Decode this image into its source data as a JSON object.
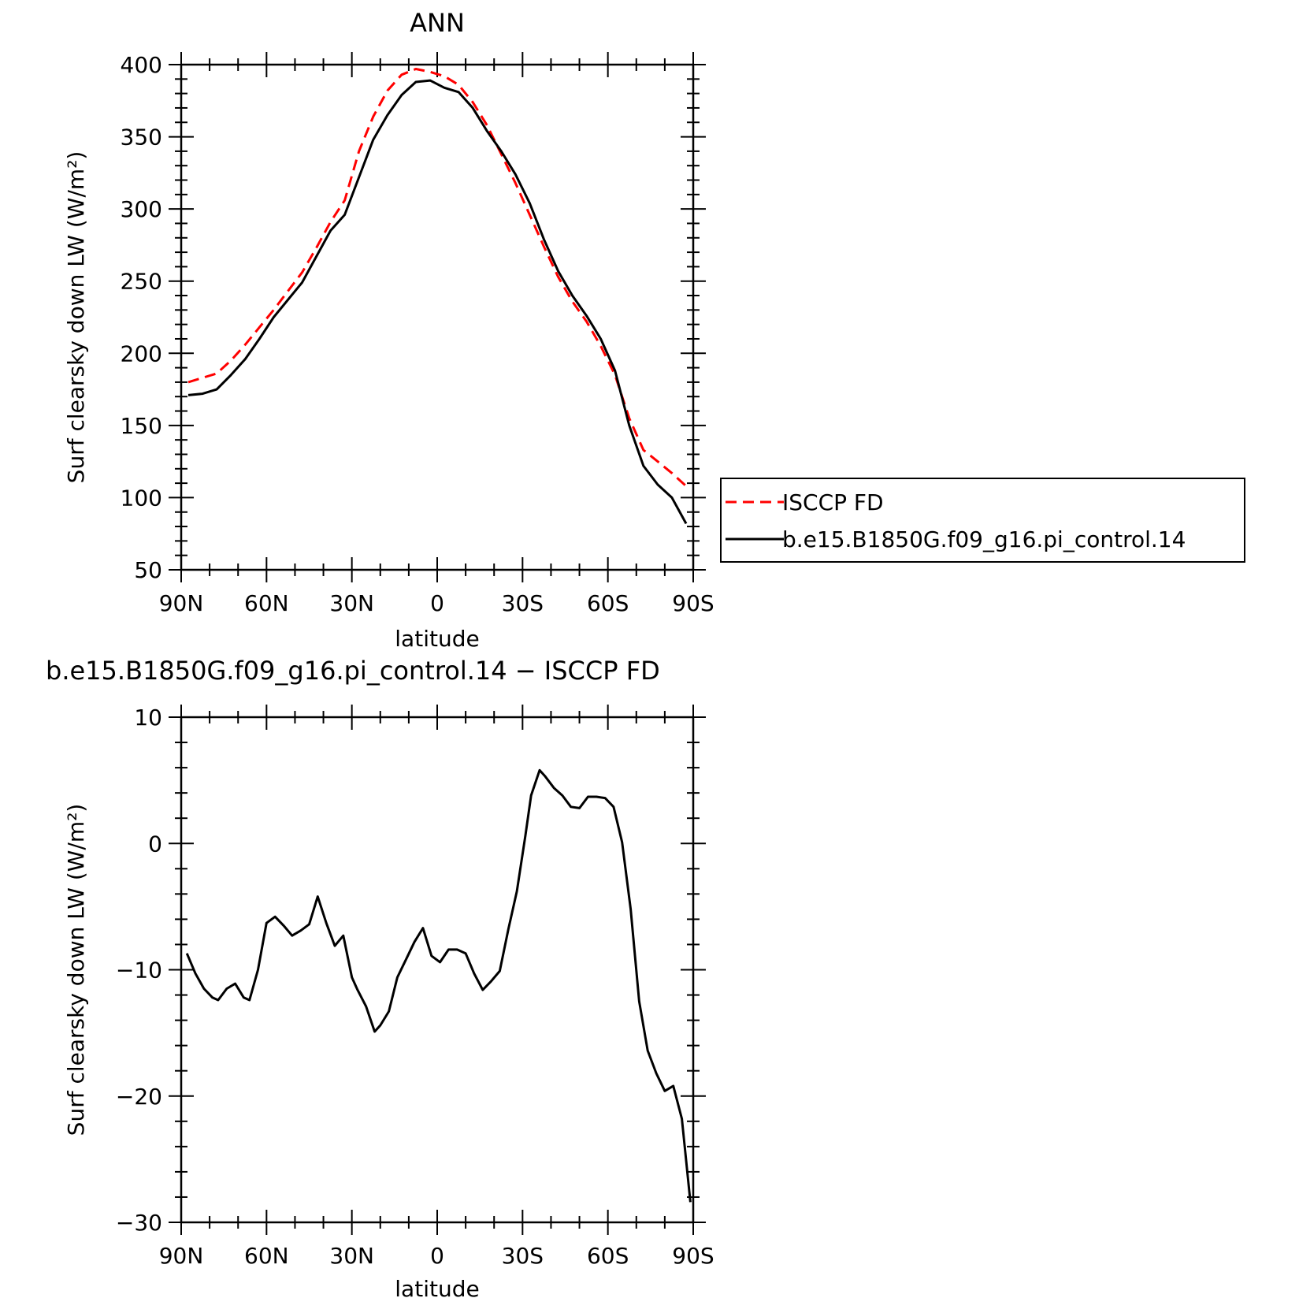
{
  "chart_data": [
    {
      "type": "line",
      "title": "ANN",
      "xlabel": "latitude",
      "ylabel": "Surf clearsky down LW (W/m²)",
      "ylim": [
        50,
        400
      ],
      "xlim": [
        90,
        -90
      ],
      "x_ticks": [
        {
          "value": 90,
          "label": "90N"
        },
        {
          "value": 60,
          "label": "60N"
        },
        {
          "value": 30,
          "label": "30N"
        },
        {
          "value": 0,
          "label": "0"
        },
        {
          "value": -30,
          "label": "30S"
        },
        {
          "value": -60,
          "label": "60S"
        },
        {
          "value": -90,
          "label": "90S"
        }
      ],
      "y_ticks": [
        {
          "value": 400,
          "label": "400"
        },
        {
          "value": 350,
          "label": "350"
        },
        {
          "value": 300,
          "label": "300"
        },
        {
          "value": 250,
          "label": "250"
        },
        {
          "value": 200,
          "label": "200"
        },
        {
          "value": 150,
          "label": "150"
        },
        {
          "value": 100,
          "label": "100"
        },
        {
          "value": 50,
          "label": "50"
        }
      ],
      "legend": "right",
      "series": [
        {
          "name": "ISCCP FD",
          "color": "#ff0000",
          "dash": "dashed",
          "x": [
            87.5,
            82.5,
            77.5,
            72.5,
            67.5,
            62.5,
            57.5,
            52.5,
            47.5,
            42.5,
            37.5,
            32.5,
            27.5,
            22.5,
            17.5,
            12.5,
            7.5,
            2.5,
            -2.5,
            -7.5,
            -12.5,
            -17.5,
            -22.5,
            -27.5,
            -32.5,
            -37.5,
            -42.5,
            -47.5,
            -52.5,
            -57.5,
            -62.5,
            -67.5,
            -72.5,
            -77.5,
            -82.5,
            -87.5
          ],
          "y": [
            180,
            183,
            186,
            195,
            206,
            218,
            230,
            243,
            256,
            273,
            291,
            306,
            340,
            364,
            382,
            393,
            397,
            395,
            392,
            386,
            374,
            358,
            338,
            318,
            296,
            274,
            253,
            236,
            222,
            205,
            185,
            155,
            133,
            125,
            117,
            108
          ]
        },
        {
          "name": "b.e15.B1850G.f09_g16.pi_control.14",
          "color": "#000000",
          "dash": "solid",
          "x": [
            87.5,
            82.5,
            77.5,
            72.5,
            67.5,
            62.5,
            57.5,
            52.5,
            47.5,
            42.5,
            37.5,
            32.5,
            27.5,
            22.5,
            17.5,
            12.5,
            7.5,
            2.5,
            -2.5,
            -7.5,
            -12.5,
            -17.5,
            -22.5,
            -27.5,
            -32.5,
            -37.5,
            -42.5,
            -47.5,
            -52.5,
            -57.5,
            -62.5,
            -67.5,
            -72.5,
            -77.5,
            -82.5,
            -87.5
          ],
          "y": [
            171,
            172,
            175,
            185,
            196,
            210,
            225,
            237,
            249,
            267,
            285,
            296,
            322,
            348,
            365,
            379,
            388,
            389,
            384,
            381,
            370,
            354,
            340,
            324,
            304,
            279,
            257,
            240,
            226,
            210,
            188,
            150,
            122,
            109,
            100,
            82
          ]
        }
      ]
    },
    {
      "type": "line",
      "title": "b.e15.B1850G.f09_g16.pi_control.14 − ISCCP FD",
      "xlabel": "latitude",
      "ylabel": "Surf clearsky down LW (W/m²)",
      "ylim": [
        -30,
        10
      ],
      "xlim": [
        90,
        -90
      ],
      "x_ticks": [
        {
          "value": 90,
          "label": "90N"
        },
        {
          "value": 60,
          "label": "60N"
        },
        {
          "value": 30,
          "label": "30N"
        },
        {
          "value": 0,
          "label": "0"
        },
        {
          "value": -30,
          "label": "30S"
        },
        {
          "value": -60,
          "label": "60S"
        },
        {
          "value": -90,
          "label": "90S"
        }
      ],
      "y_ticks": [
        {
          "value": 10,
          "label": "10"
        },
        {
          "value": 0,
          "label": "0"
        },
        {
          "value": -10,
          "label": "−10"
        },
        {
          "value": -20,
          "label": "−20"
        },
        {
          "value": -30,
          "label": "−30"
        }
      ],
      "series": [
        {
          "color": "#000000",
          "dash": "solid",
          "x": [
            88,
            85,
            82,
            79,
            77,
            74,
            71,
            68,
            66,
            63,
            60,
            57,
            54,
            51,
            48,
            45,
            42,
            39,
            36,
            33,
            30,
            28,
            25,
            22,
            20,
            17,
            14,
            11,
            8,
            5,
            2,
            -1,
            -4,
            -7,
            -10,
            -13,
            -16,
            -19,
            -22,
            -25,
            -28,
            -31,
            -33,
            -36,
            -38,
            -41,
            -44,
            -47,
            -50,
            -53,
            -56,
            -59,
            -62,
            -65,
            -68,
            -71,
            -74,
            -77,
            -80,
            -83,
            -86,
            -89
          ],
          "y": [
            -8.7,
            -10.3,
            -11.5,
            -12.2,
            -12.4,
            -11.5,
            -11.1,
            -12.2,
            -12.4,
            -10.0,
            -6.3,
            -5.8,
            -6.5,
            -7.3,
            -6.9,
            -6.4,
            -4.2,
            -6.3,
            -8.1,
            -7.3,
            -10.6,
            -11.6,
            -12.9,
            -14.9,
            -14.4,
            -13.3,
            -10.6,
            -9.2,
            -7.8,
            -6.7,
            -8.9,
            -9.4,
            -8.4,
            -8.4,
            -8.7,
            -10.3,
            -11.6,
            -10.9,
            -10.1,
            -6.8,
            -3.8,
            0.6,
            3.8,
            5.8,
            5.3,
            4.4,
            3.8,
            2.9,
            2.8,
            3.7,
            3.7,
            3.6,
            2.9,
            0.1,
            -5.2,
            -12.5,
            -16.4,
            -18.2,
            -19.6,
            -19.2,
            -21.8,
            -28.4
          ]
        }
      ]
    }
  ]
}
